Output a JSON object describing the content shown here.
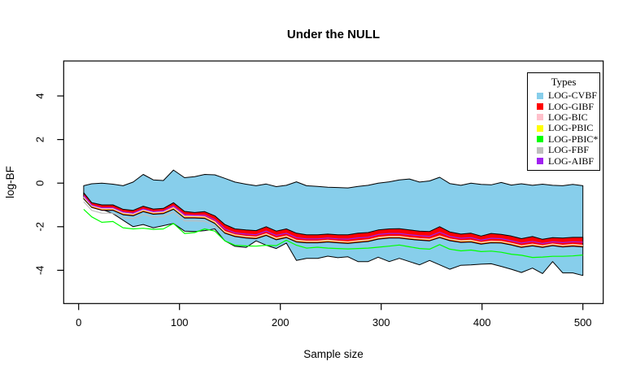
{
  "chart_data": {
    "type": "area",
    "title": "Under the NULL",
    "xlabel": "Sample size",
    "ylabel": "log-BF",
    "x_ticks": [
      0,
      100,
      200,
      300,
      400,
      500
    ],
    "y_ticks": [
      4,
      2,
      0,
      -2,
      -4
    ],
    "xlim": [
      -20,
      520
    ],
    "ylim": [
      -5.5,
      5.6
    ],
    "grid": false,
    "plot_border_color": "#000000",
    "background": "#ffffff",
    "legend": {
      "title": "Types",
      "position": "top-right",
      "items": [
        {
          "label": "LOG-CVBF",
          "color": "#87CEEB"
        },
        {
          "label": "LOG-GIBF",
          "color": "#FF0000"
        },
        {
          "label": "LOG-BIC",
          "color": "#FFC0CB"
        },
        {
          "label": "LOG-PBIC",
          "color": "#FFFF00"
        },
        {
          "label": "LOG-PBIC*",
          "color": "#00FF00"
        },
        {
          "label": "LOG-FBF",
          "color": "#BEBEBE"
        },
        {
          "label": "LOG-AIBF",
          "color": "#A020F0"
        }
      ]
    },
    "x": [
      5,
      13,
      23,
      34,
      44,
      54,
      64,
      74,
      84,
      94,
      105,
      115,
      125,
      135,
      145,
      155,
      166,
      176,
      186,
      196,
      206,
      216,
      226,
      237,
      247,
      257,
      267,
      277,
      287,
      297,
      308,
      318,
      328,
      338,
      348,
      358,
      368,
      379,
      389,
      399,
      409,
      419,
      429,
      439,
      450,
      460,
      470,
      480,
      490,
      500
    ],
    "series": [
      {
        "name": "LOG-CVBF",
        "kind": "band",
        "color": "#87CEEB",
        "outline": "#000000",
        "upper": [
          -0.12,
          -0.03,
          0.0,
          -0.05,
          -0.12,
          0.05,
          0.4,
          0.15,
          0.12,
          0.6,
          0.25,
          0.3,
          0.4,
          0.38,
          0.22,
          0.05,
          -0.05,
          -0.12,
          -0.04,
          -0.16,
          -0.1,
          0.06,
          -0.12,
          -0.15,
          -0.19,
          -0.2,
          -0.22,
          -0.15,
          -0.1,
          0.0,
          0.06,
          0.15,
          0.19,
          0.05,
          0.1,
          0.27,
          -0.02,
          -0.1,
          0.0,
          -0.06,
          -0.08,
          0.03,
          -0.09,
          -0.03,
          -0.1,
          -0.05,
          -0.1,
          -0.12,
          -0.06,
          -0.12
        ],
        "lower": [
          -0.62,
          -1.05,
          -1.2,
          -1.4,
          -1.7,
          -2.0,
          -1.9,
          -2.05,
          -1.95,
          -1.85,
          -2.2,
          -2.22,
          -2.18,
          -2.1,
          -2.65,
          -2.9,
          -2.95,
          -2.65,
          -2.85,
          -3.0,
          -2.75,
          -3.55,
          -3.45,
          -3.45,
          -3.35,
          -3.42,
          -3.38,
          -3.6,
          -3.6,
          -3.4,
          -3.6,
          -3.45,
          -3.6,
          -3.75,
          -3.55,
          -3.75,
          -3.95,
          -3.77,
          -3.75,
          -3.72,
          -3.7,
          -3.82,
          -3.95,
          -4.1,
          -3.9,
          -4.15,
          -3.6,
          -4.12,
          -4.12,
          -4.24
        ]
      },
      {
        "name": "LOG-FBF",
        "kind": "line",
        "color": "#BEBEBE",
        "values": [
          -0.85,
          -1.25,
          -1.38,
          -1.38,
          -1.58,
          -1.63,
          -1.44,
          -1.56,
          -1.53,
          -1.33,
          -1.73,
          -1.73,
          -1.75,
          -1.98,
          -2.25,
          -2.4,
          -2.47,
          -2.5,
          -2.35,
          -2.55,
          -2.45,
          -2.65,
          -2.69,
          -2.69,
          -2.65,
          -2.69,
          -2.72,
          -2.67,
          -2.63,
          -2.52,
          -2.47,
          -2.47,
          -2.53,
          -2.57,
          -2.6,
          -2.45,
          -2.59,
          -2.67,
          -2.65,
          -2.75,
          -2.69,
          -2.7,
          -2.79,
          -2.9,
          -2.83,
          -2.9,
          -2.82,
          -2.88,
          -2.84,
          -2.88
        ]
      },
      {
        "name": "LOG-GIBF",
        "kind": "band",
        "color": "#FF0000",
        "outline": "#000000",
        "upper": [
          -0.44,
          -0.9,
          -1.0,
          -1.0,
          -1.2,
          -1.25,
          -1.06,
          -1.19,
          -1.16,
          -0.9,
          -1.3,
          -1.35,
          -1.31,
          -1.5,
          -1.9,
          -2.1,
          -2.15,
          -2.18,
          -2.0,
          -2.2,
          -2.1,
          -2.3,
          -2.37,
          -2.37,
          -2.34,
          -2.37,
          -2.37,
          -2.3,
          -2.27,
          -2.15,
          -2.1,
          -2.09,
          -2.15,
          -2.2,
          -2.22,
          -2.0,
          -2.24,
          -2.34,
          -2.3,
          -2.43,
          -2.31,
          -2.35,
          -2.43,
          -2.55,
          -2.45,
          -2.58,
          -2.5,
          -2.52,
          -2.49,
          -2.49
        ],
        "lower": [
          -0.72,
          -1.12,
          -1.25,
          -1.25,
          -1.45,
          -1.5,
          -1.31,
          -1.43,
          -1.4,
          -1.2,
          -1.6,
          -1.6,
          -1.62,
          -1.85,
          -2.3,
          -2.45,
          -2.52,
          -2.55,
          -2.4,
          -2.6,
          -2.5,
          -2.7,
          -2.74,
          -2.74,
          -2.7,
          -2.74,
          -2.77,
          -2.72,
          -2.68,
          -2.57,
          -2.52,
          -2.52,
          -2.58,
          -2.62,
          -2.65,
          -2.5,
          -2.64,
          -2.72,
          -2.7,
          -2.8,
          -2.74,
          -2.75,
          -2.84,
          -2.95,
          -2.88,
          -2.95,
          -2.87,
          -2.93,
          -2.89,
          -2.93
        ]
      },
      {
        "name": "LOG-PBIC",
        "kind": "line",
        "color": "#FFFF00",
        "values": [
          -0.66,
          -1.06,
          -1.19,
          -1.19,
          -1.39,
          -1.44,
          -1.25,
          -1.37,
          -1.34,
          -1.14,
          -1.54,
          -1.54,
          -1.56,
          -1.79,
          -2.24,
          -2.39,
          -2.46,
          -2.49,
          -2.34,
          -2.54,
          -2.44,
          -2.64,
          -2.68,
          -2.68,
          -2.64,
          -2.68,
          -2.71,
          -2.66,
          -2.62,
          -2.51,
          -2.46,
          -2.46,
          -2.52,
          -2.56,
          -2.59,
          -2.44,
          -2.58,
          -2.66,
          -2.64,
          -2.74,
          -2.68,
          -2.69,
          -2.78,
          -2.89,
          -2.82,
          -2.89,
          -2.81,
          -2.87,
          -2.83,
          -2.87
        ]
      },
      {
        "name": "LOG-BIC",
        "kind": "line",
        "color": "#FFC0CB",
        "values": [
          -0.64,
          -1.04,
          -1.17,
          -1.17,
          -1.37,
          -1.42,
          -1.23,
          -1.35,
          -1.32,
          -1.12,
          -1.52,
          -1.52,
          -1.54,
          -1.77,
          -2.22,
          -2.37,
          -2.44,
          -2.47,
          -2.32,
          -2.52,
          -2.42,
          -2.62,
          -2.66,
          -2.66,
          -2.62,
          -2.66,
          -2.69,
          -2.64,
          -2.6,
          -2.49,
          -2.44,
          -2.44,
          -2.5,
          -2.54,
          -2.57,
          -2.42,
          -2.56,
          -2.64,
          -2.62,
          -2.72,
          -2.66,
          -2.67,
          -2.76,
          -2.87,
          -2.8,
          -2.87,
          -2.79,
          -2.85,
          -2.81,
          -2.85
        ]
      },
      {
        "name": "LOG-AIBF",
        "kind": "line",
        "color": "#A020F0",
        "values": [
          -0.58,
          -1.01,
          -1.13,
          -1.13,
          -1.33,
          -1.38,
          -1.19,
          -1.31,
          -1.28,
          -1.05,
          -1.45,
          -1.48,
          -1.47,
          -1.68,
          -2.1,
          -2.28,
          -2.34,
          -2.37,
          -2.2,
          -2.4,
          -2.3,
          -2.5,
          -2.56,
          -2.56,
          -2.52,
          -2.56,
          -2.57,
          -2.51,
          -2.48,
          -2.36,
          -2.31,
          -2.31,
          -2.37,
          -2.41,
          -2.44,
          -2.25,
          -2.44,
          -2.53,
          -2.5,
          -2.62,
          -2.53,
          -2.55,
          -2.64,
          -2.75,
          -2.67,
          -2.77,
          -2.69,
          -2.73,
          -2.69,
          -2.71
        ]
      },
      {
        "name": "LOG-PBIC*",
        "kind": "line",
        "color": "#00FF00",
        "values": [
          -1.2,
          -1.55,
          -1.8,
          -1.76,
          -2.05,
          -2.1,
          -2.07,
          -2.12,
          -2.1,
          -1.85,
          -2.31,
          -2.27,
          -2.1,
          -2.2,
          -2.65,
          -2.85,
          -2.88,
          -2.89,
          -2.85,
          -2.87,
          -2.62,
          -2.85,
          -2.98,
          -2.94,
          -2.98,
          -3.0,
          -3.02,
          -3.0,
          -2.98,
          -2.94,
          -2.89,
          -2.84,
          -2.92,
          -3.0,
          -3.03,
          -2.82,
          -3.03,
          -3.11,
          -3.07,
          -3.14,
          -3.12,
          -3.17,
          -3.26,
          -3.31,
          -3.41,
          -3.39,
          -3.36,
          -3.36,
          -3.34,
          -3.3
        ]
      }
    ]
  }
}
